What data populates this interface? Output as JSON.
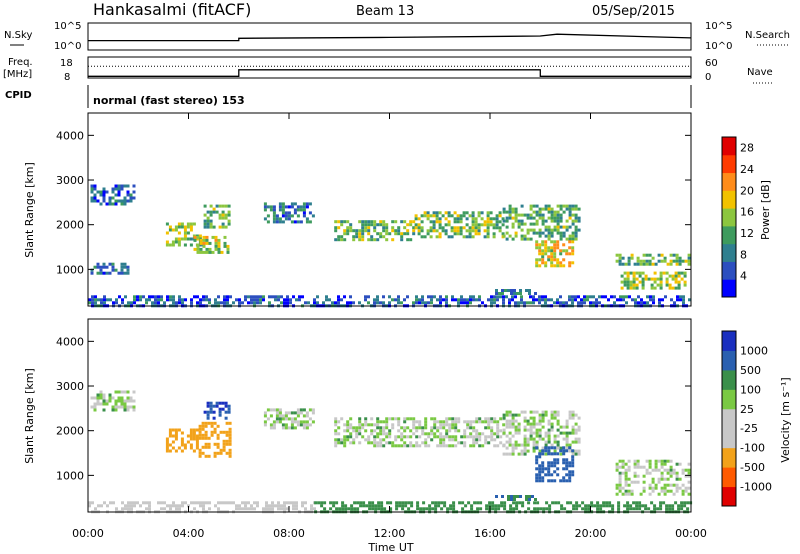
{
  "header": {
    "station": "Hankasalmi (fitACF)",
    "beam": "Beam 13",
    "date": "05/Sep/2015"
  },
  "labels": {
    "nsky": "N.Sky",
    "nsearch": "N.Search",
    "freq": "Freq.",
    "freq_unit": "[MHz]",
    "nave": "Nave",
    "cpid": "CPID",
    "cpid_value": "normal (fast stereo) 153",
    "slant_range": "Slant Range [km]",
    "time_axis": "Time UT",
    "power_label": "Power [dB]",
    "velocity_label": "Velocity [m s⁻¹]"
  },
  "chart_data": [
    {
      "type": "line",
      "name": "noise-panel",
      "left_ticks": [
        "10^5",
        "10^0"
      ],
      "right_ticks": [
        "10^5",
        "10^0"
      ],
      "series": [
        {
          "name": "N.Sky",
          "x": [
            "00:00",
            "06:00",
            "06:00",
            "12:00",
            "18:00",
            "18:40",
            "24:00"
          ],
          "y": [
            1.6,
            1.6,
            2.1,
            2.3,
            2.6,
            3.0,
            2.2
          ]
        }
      ]
    },
    {
      "type": "line",
      "name": "freq-nave-panel",
      "left_ticks": [
        "18",
        "8"
      ],
      "right_ticks": [
        "60",
        "0"
      ],
      "series": [
        {
          "name": "Freq.",
          "x": [
            "00:00",
            "06:00",
            "06:00",
            "18:00",
            "18:00",
            "24:00"
          ],
          "y": [
            8.4,
            8.4,
            12.0,
            12.0,
            8.4,
            8.4
          ]
        },
        {
          "name": "Nave",
          "x": [
            "00:00",
            "24:00"
          ],
          "y": [
            36,
            36
          ]
        }
      ]
    },
    {
      "type": "heatmap",
      "name": "power-panel",
      "x_range": [
        "00:00",
        "24:00"
      ],
      "xticks": [
        "00:00",
        "04:00",
        "08:00",
        "12:00",
        "16:00",
        "20:00",
        "00:00"
      ],
      "ylim": [
        180,
        4500
      ],
      "yticks": [
        1000,
        2000,
        3000,
        4000
      ],
      "colorbar": {
        "label": "Power [dB]",
        "ticks": [
          4,
          8,
          12,
          16,
          20,
          24,
          28
        ],
        "range": [
          0,
          30
        ]
      },
      "regions": [
        {
          "t": [
            0.1,
            1.8
          ],
          "r": [
            2450,
            2900
          ],
          "v": 6
        },
        {
          "t": [
            0.1,
            1.6
          ],
          "r": [
            900,
            1150
          ],
          "v": 7
        },
        {
          "t": [
            3.1,
            4.6
          ],
          "r": [
            1550,
            2050
          ],
          "v": 14
        },
        {
          "t": [
            4.2,
            5.6
          ],
          "r": [
            1350,
            1750
          ],
          "v": 16
        },
        {
          "t": [
            4.6,
            5.6
          ],
          "r": [
            1950,
            2450
          ],
          "v": 12
        },
        {
          "t": [
            7.0,
            9.0
          ],
          "r": [
            2050,
            2500
          ],
          "v": 8
        },
        {
          "t": [
            9.8,
            13.0
          ],
          "r": [
            1650,
            2100
          ],
          "v": 13
        },
        {
          "t": [
            13.0,
            16.5
          ],
          "r": [
            1750,
            2300
          ],
          "v": 14
        },
        {
          "t": [
            16.5,
            19.6
          ],
          "r": [
            1650,
            2450
          ],
          "v": 12
        },
        {
          "t": [
            17.8,
            19.3
          ],
          "r": [
            1050,
            1650
          ],
          "v": 18
        },
        {
          "t": [
            16.2,
            17.8
          ],
          "r": [
            430,
            560
          ],
          "v": 9
        },
        {
          "t": [
            21.0,
            23.9
          ],
          "r": [
            1100,
            1350
          ],
          "v": 13
        },
        {
          "t": [
            21.2,
            23.8
          ],
          "r": [
            600,
            950
          ],
          "v": 15
        },
        {
          "t": [
            0.0,
            24.0
          ],
          "r": [
            190,
            420
          ],
          "v": 6
        }
      ]
    },
    {
      "type": "heatmap",
      "name": "velocity-panel",
      "x_range": [
        "00:00",
        "24:00"
      ],
      "xticks": [
        "00:00",
        "04:00",
        "08:00",
        "12:00",
        "16:00",
        "20:00",
        "00:00"
      ],
      "ylim": [
        180,
        4500
      ],
      "yticks": [
        1000,
        2000,
        3000,
        4000
      ],
      "colorbar": {
        "label": "Velocity [m s⁻¹]",
        "ticks": [
          "1000",
          "500",
          "100",
          "25",
          "-25",
          "-100",
          "-500",
          "-1000"
        ]
      },
      "regions": [
        {
          "t": [
            0.1,
            1.8
          ],
          "r": [
            2450,
            2900
          ],
          "v": 0
        },
        {
          "t": [
            3.1,
            4.4
          ],
          "r": [
            1550,
            2050
          ],
          "v": -450
        },
        {
          "t": [
            4.4,
            5.6
          ],
          "r": [
            1450,
            2200
          ],
          "v": -350
        },
        {
          "t": [
            4.6,
            5.6
          ],
          "r": [
            2250,
            2650
          ],
          "v": 500
        },
        {
          "t": [
            7.0,
            9.0
          ],
          "r": [
            2050,
            2500
          ],
          "v": 0
        },
        {
          "t": [
            9.8,
            16.5
          ],
          "r": [
            1650,
            2300
          ],
          "v": 0
        },
        {
          "t": [
            16.5,
            19.6
          ],
          "r": [
            1500,
            2450
          ],
          "v": 0
        },
        {
          "t": [
            17.8,
            19.3
          ],
          "r": [
            900,
            1650
          ],
          "v": 250
        },
        {
          "t": [
            16.2,
            17.8
          ],
          "r": [
            430,
            560
          ],
          "v": 90
        },
        {
          "t": [
            21.0,
            23.9
          ],
          "r": [
            550,
            1350
          ],
          "v": 0
        },
        {
          "t": [
            0.0,
            9.0
          ],
          "r": [
            190,
            420
          ],
          "v": -70
        },
        {
          "t": [
            9.0,
            24.0
          ],
          "r": [
            190,
            420
          ],
          "v": 60
        }
      ]
    }
  ],
  "colors": {
    "power_scale": [
      "#0000ff",
      "#2c4fbf",
      "#2f7f8f",
      "#3e9b5e",
      "#8cc63f",
      "#f2c200",
      "#ff8c1a",
      "#ff3b00",
      "#e00000"
    ],
    "velocity_scale": [
      "#e00000",
      "#ff5a00",
      "#f2a21a",
      "#c8c8c8",
      "#c8c8c8",
      "#7ac943",
      "#3a8f4a",
      "#2a60b0",
      "#1a2fbf"
    ],
    "ground_scatter": "#c0c0c0"
  }
}
